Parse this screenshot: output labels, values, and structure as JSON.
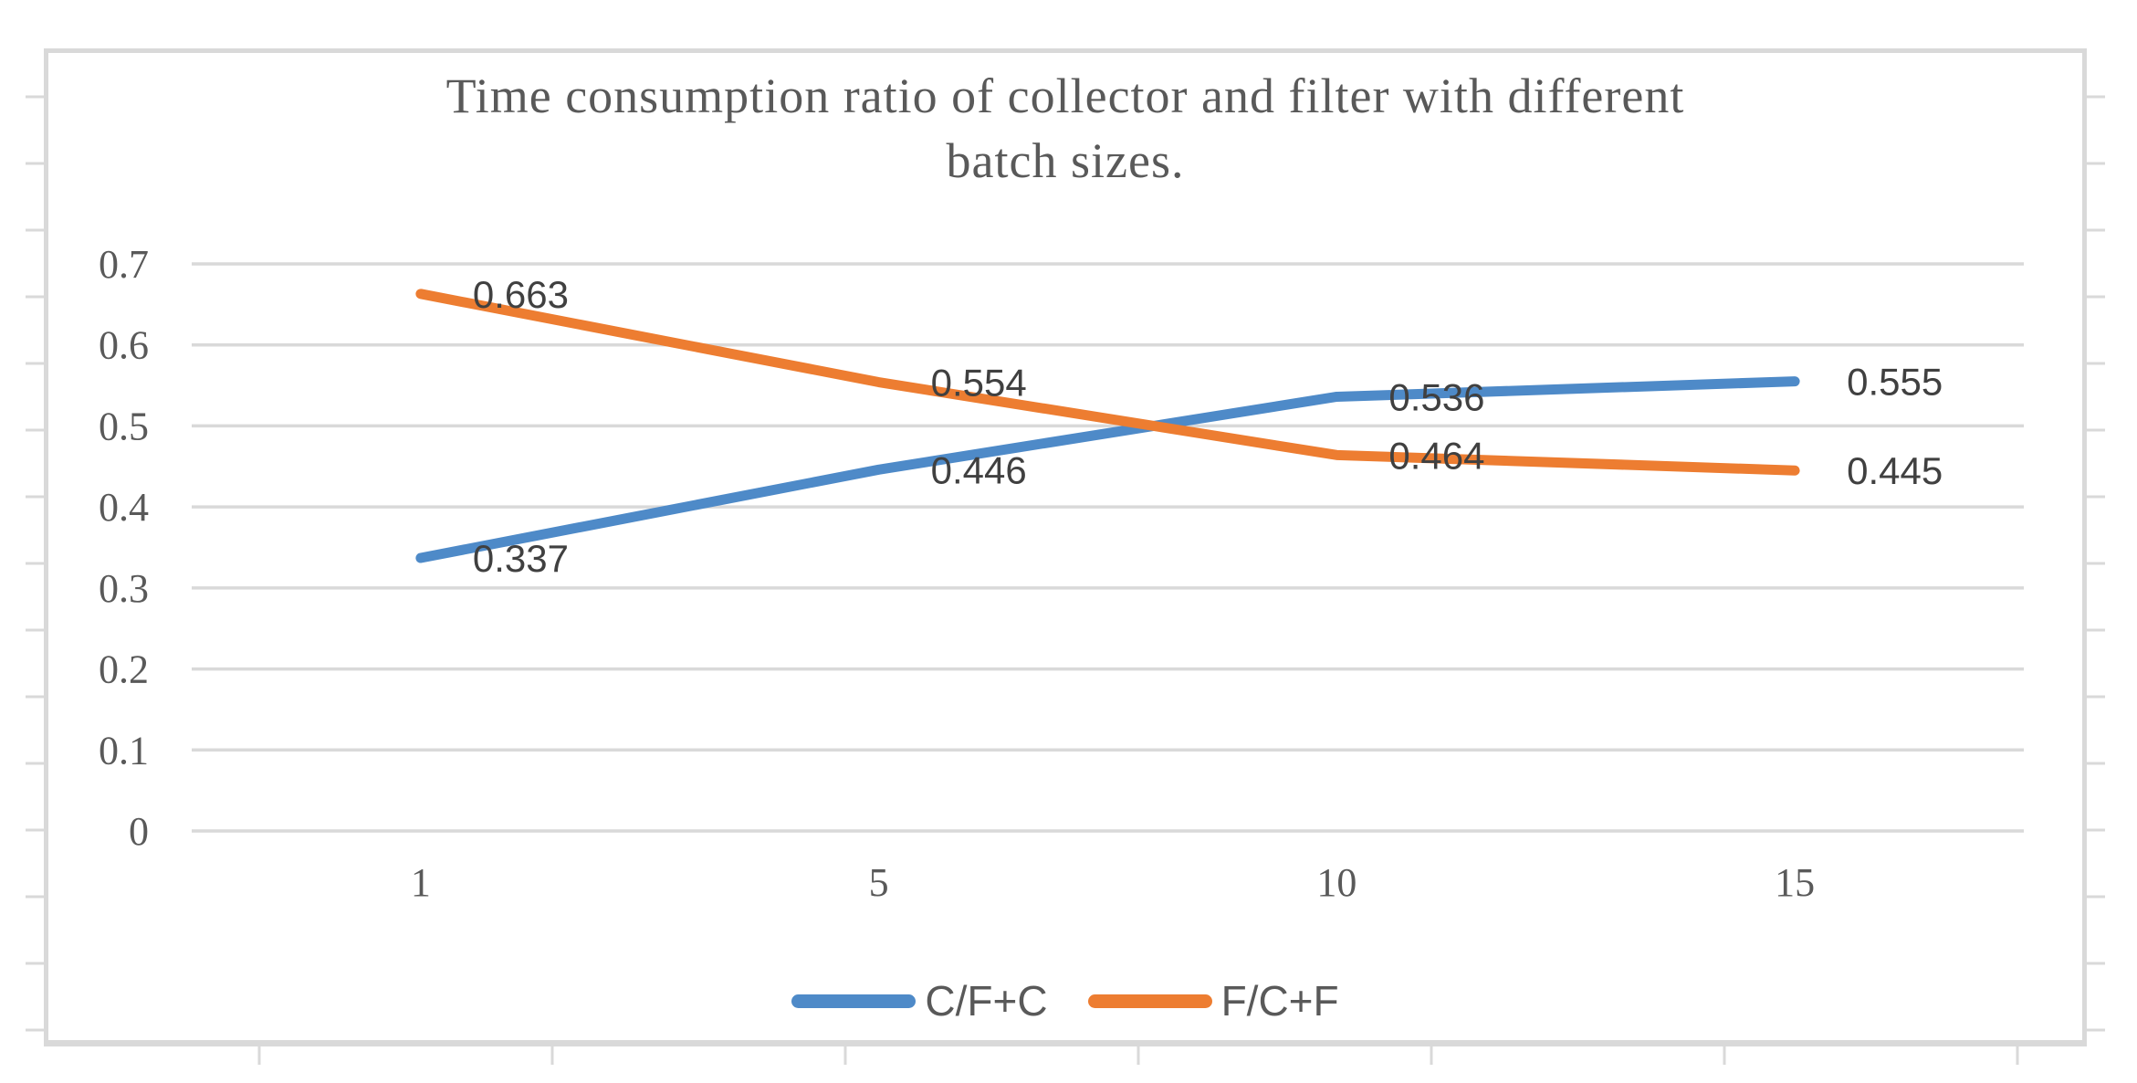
{
  "chart_data": {
    "type": "line",
    "title": "Time consumption ratio of collector and filter with different batch sizes.",
    "title_lines": [
      "Time consumption ratio of collector and filter with different",
      "batch sizes."
    ],
    "categories": [
      "1",
      "5",
      "10",
      "15"
    ],
    "series": [
      {
        "name": "C/F+C",
        "color": "#4E8AC8",
        "values": [
          0.337,
          0.446,
          0.536,
          0.555
        ]
      },
      {
        "name": "F/C+F",
        "color": "#ED7D31",
        "values": [
          0.663,
          0.554,
          0.464,
          0.445
        ]
      }
    ],
    "data_labels": [
      [
        "0.337",
        "0.446",
        "0.536",
        "0.555"
      ],
      [
        "0.663",
        "0.554",
        "0.464",
        "0.445"
      ]
    ],
    "xlabel": "",
    "ylabel": "",
    "ylim": [
      0,
      0.7
    ],
    "ytick_labels": [
      "0",
      "0.1",
      "0.2",
      "0.3",
      "0.4",
      "0.5",
      "0.6",
      "0.7"
    ],
    "grid": true,
    "legend_position": "bottom",
    "colors": {
      "grid": "#D9D9D9",
      "frame": "#D9D9D9",
      "axis_text": "#595959",
      "data_label_text": "#404040",
      "title_text": "#595959",
      "background": "#FFFFFF"
    }
  }
}
